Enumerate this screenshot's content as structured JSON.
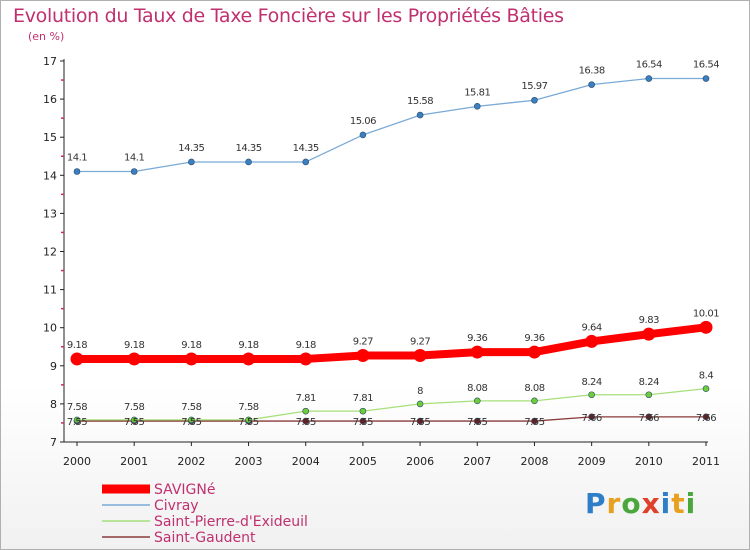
{
  "title": "Evolution du Taux de Taxe Foncière sur les Propriétés Bâties",
  "unit": "(en %)",
  "brand": {
    "text": "Proxiti",
    "letter_colors": [
      "#2f7fc8",
      "#e8a020",
      "#49a73c",
      "#e0402a",
      "#2f7fc8",
      "#e8a020",
      "#49a73c"
    ]
  },
  "chart_data": {
    "type": "line",
    "x": [
      "2000",
      "2001",
      "2002",
      "2003",
      "2004",
      "2005",
      "2006",
      "2007",
      "2008",
      "2009",
      "2010",
      "2011"
    ],
    "ylim": [
      7,
      17
    ],
    "yticks": [
      7,
      8,
      9,
      10,
      11,
      12,
      13,
      14,
      15,
      16,
      17
    ],
    "grid": false,
    "legend_position": "bottom-left",
    "series": [
      {
        "name": "SAVIGNé",
        "color": "#ff0000",
        "width": "thick",
        "values": [
          9.18,
          9.18,
          9.18,
          9.18,
          9.18,
          9.27,
          9.27,
          9.36,
          9.36,
          9.64,
          9.83,
          10.01
        ],
        "labels": [
          "9.18",
          "9.18",
          "9.18",
          "9.18",
          "9.18",
          "9.27",
          "9.27",
          "9.36",
          "9.36",
          "9.64",
          "9.83",
          "10.01"
        ]
      },
      {
        "name": "Civray",
        "color": "#7aaad6",
        "marker_color": "#3a7fc0",
        "width": "thin",
        "values": [
          14.1,
          14.1,
          14.35,
          14.35,
          14.35,
          15.06,
          15.58,
          15.81,
          15.97,
          16.38,
          16.54,
          16.54
        ],
        "labels": [
          "14.1",
          "14.1",
          "14.35",
          "14.35",
          "14.35",
          "15.06",
          "15.58",
          "15.81",
          "15.97",
          "16.38",
          "16.54",
          "16.54"
        ]
      },
      {
        "name": "Saint-Pierre-d'Exideuil",
        "color": "#a6e07a",
        "marker_color": "#6ccc3a",
        "width": "thin",
        "values": [
          7.58,
          7.58,
          7.58,
          7.58,
          7.81,
          7.81,
          8,
          8.08,
          8.08,
          8.24,
          8.24,
          8.4
        ],
        "labels": [
          "7.58",
          "7.58",
          "7.58",
          "7.58",
          "7.81",
          "7.81",
          "8",
          "8.08",
          "8.08",
          "8.24",
          "8.24",
          "8.4"
        ]
      },
      {
        "name": "Saint-Gaudent",
        "color": "#8a3a3a",
        "marker_color": "#6b2020",
        "width": "thin",
        "values": [
          7.55,
          7.55,
          7.55,
          7.55,
          7.55,
          7.55,
          7.55,
          7.55,
          7.55,
          7.66,
          7.66,
          7.66
        ],
        "labels": [
          "7.55",
          "7.55",
          "7.55",
          "7.55",
          "7.55",
          "7.55",
          "7.55",
          "7.55",
          "7.55",
          "7.66",
          "7.66",
          "7.66"
        ]
      }
    ]
  }
}
